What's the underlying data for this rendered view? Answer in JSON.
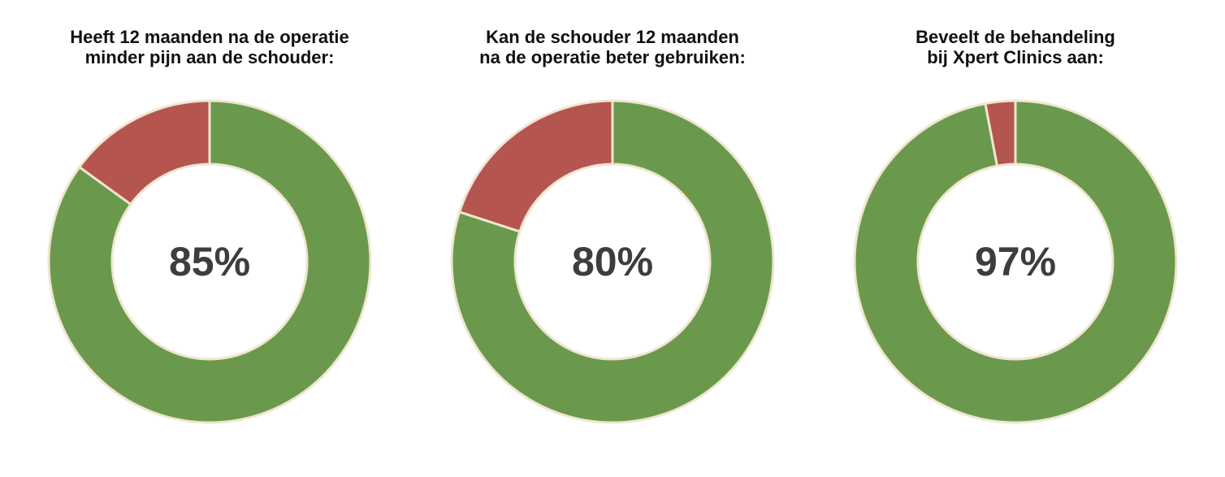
{
  "colors": {
    "positive": "#6a994d",
    "negative": "#b5554f",
    "border": "#efe6cf",
    "label": "#3d3d3d"
  },
  "chart_data": [
    {
      "type": "pie",
      "title_lines": [
        "Heeft 12 maanden na de operatie",
        "minder pijn aan de schouder:"
      ],
      "center_label": "85%",
      "values": [
        85,
        15
      ]
    },
    {
      "type": "pie",
      "title_lines": [
        "Kan de schouder 12 maanden",
        "na de operatie beter gebruiken:"
      ],
      "center_label": "80%",
      "values": [
        80,
        20
      ]
    },
    {
      "type": "pie",
      "title_lines": [
        "Beveelt de behandeling",
        "bij Xpert Clinics aan:"
      ],
      "center_label": "97%",
      "values": [
        97,
        3
      ]
    }
  ]
}
